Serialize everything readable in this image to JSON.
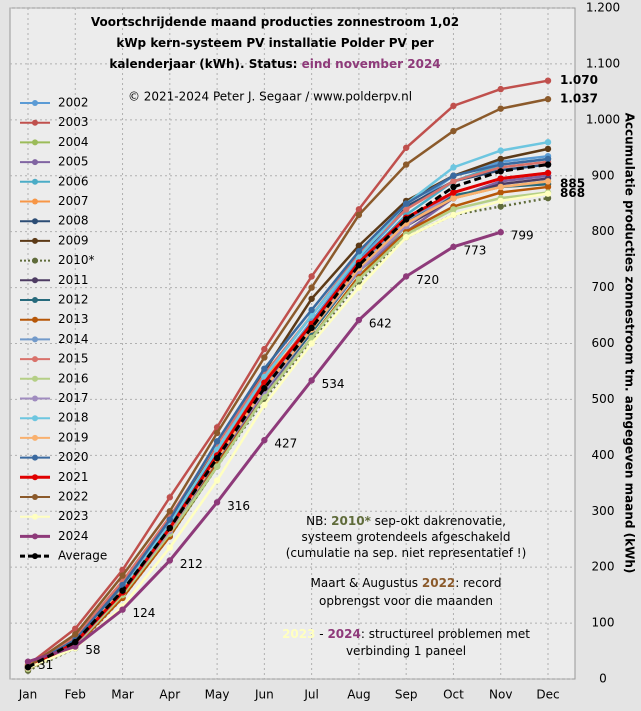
{
  "chart_data": {
    "type": "line",
    "title_lines": [
      "Voortschrijdende maand producties zonnestroom 1,02",
      "kWp kern-systeem PV installatie Polder PV per",
      "kalenderjaar (kWh). Status: "
    ],
    "status": "eind november 2024",
    "status_color": "#8e3a7a",
    "subtitle": "© 2021-2024 Peter J. Segaar / www.polderpv.nl",
    "y_label": "Accumulatie producties zonnestroom tm. aangegeven maand (kWh)",
    "categories": [
      "Jan",
      "Feb",
      "Mar",
      "Apr",
      "May",
      "Jun",
      "Jul",
      "Aug",
      "Sep",
      "Oct",
      "Nov",
      "Dec"
    ],
    "ylim": [
      0,
      1200
    ],
    "yticks": [
      0,
      100,
      200,
      300,
      400,
      500,
      600,
      700,
      800,
      900,
      {
        "value": 1000,
        "label": "1.000"
      },
      {
        "value": 1100,
        "label": "1.100"
      },
      {
        "value": 1200,
        "label": "1.200"
      }
    ],
    "grid": true,
    "series": [
      {
        "name": "2002",
        "color": "#5b9bd5",
        "values": [
          20,
          55,
          150,
          270,
          400,
          530,
          640,
          750,
          840,
          900,
          925,
          935
        ]
      },
      {
        "name": "2003",
        "color": "#c0504d",
        "values": [
          25,
          90,
          195,
          325,
          450,
          590,
          720,
          840,
          950,
          1025,
          1055,
          1070
        ],
        "end_label": "1.070"
      },
      {
        "name": "2004",
        "color": "#9bbb59",
        "values": [
          18,
          60,
          150,
          255,
          380,
          505,
          610,
          720,
          810,
          860,
          880,
          890
        ]
      },
      {
        "name": "2005",
        "color": "#8064a2",
        "values": [
          20,
          62,
          155,
          265,
          390,
          510,
          620,
          730,
          800,
          860,
          890,
          900
        ]
      },
      {
        "name": "2006",
        "color": "#4bacc6",
        "values": [
          22,
          65,
          160,
          275,
          400,
          525,
          630,
          745,
          830,
          890,
          920,
          930
        ]
      },
      {
        "name": "2007",
        "color": "#f79646",
        "values": [
          24,
          70,
          165,
          280,
          410,
          535,
          635,
          740,
          820,
          860,
          880,
          885
        ]
      },
      {
        "name": "2008",
        "color": "#2c4d75",
        "values": [
          20,
          60,
          150,
          270,
          410,
          540,
          650,
          755,
          845,
          890,
          910,
          920
        ]
      },
      {
        "name": "2009",
        "color": "#5c3a17",
        "values": [
          20,
          70,
          170,
          285,
          420,
          550,
          680,
          775,
          855,
          900,
          930,
          948
        ]
      },
      {
        "name": "2010*",
        "color": "#5f6b3a",
        "values": [
          15,
          55,
          145,
          255,
          380,
          500,
          605,
          710,
          790,
          830,
          845,
          860
        ],
        "dotted": true
      },
      {
        "name": "2011",
        "color": "#4d3b62",
        "values": [
          22,
          68,
          160,
          270,
          400,
          520,
          625,
          735,
          810,
          860,
          885,
          895
        ]
      },
      {
        "name": "2012",
        "color": "#276a7c",
        "values": [
          20,
          62,
          150,
          265,
          395,
          515,
          620,
          730,
          815,
          865,
          880,
          885
        ],
        "end_label": "885"
      },
      {
        "name": "2013",
        "color": "#b65708",
        "values": [
          18,
          58,
          145,
          255,
          385,
          505,
          610,
          720,
          800,
          845,
          870,
          880
        ]
      },
      {
        "name": "2014",
        "color": "#729aca",
        "values": [
          20,
          60,
          155,
          265,
          395,
          520,
          630,
          740,
          820,
          870,
          895,
          905
        ]
      },
      {
        "name": "2015",
        "color": "#d9726b",
        "values": [
          22,
          75,
          175,
          290,
          420,
          545,
          650,
          760,
          840,
          890,
          915,
          925
        ]
      },
      {
        "name": "2016",
        "color": "#b5cf86",
        "values": [
          18,
          60,
          150,
          260,
          380,
          505,
          610,
          715,
          795,
          840,
          860,
          870
        ]
      },
      {
        "name": "2017",
        "color": "#a08cbf",
        "values": [
          20,
          62,
          155,
          265,
          395,
          515,
          625,
          730,
          810,
          870,
          895,
          905
        ]
      },
      {
        "name": "2018",
        "color": "#6dc6e0",
        "values": [
          20,
          65,
          160,
          280,
          410,
          540,
          650,
          755,
          850,
          915,
          945,
          960
        ]
      },
      {
        "name": "2019",
        "color": "#f9b06e",
        "values": [
          22,
          66,
          158,
          268,
          395,
          520,
          625,
          735,
          815,
          860,
          880,
          890
        ]
      },
      {
        "name": "2020",
        "color": "#3a6aa0",
        "values": [
          22,
          70,
          168,
          285,
          425,
          555,
          660,
          765,
          850,
          900,
          920,
          930
        ]
      },
      {
        "name": "2021",
        "color": "#e00000",
        "values": [
          20,
          65,
          155,
          270,
          400,
          530,
          635,
          745,
          825,
          870,
          895,
          905
        ],
        "width": 3
      },
      {
        "name": "2022",
        "color": "#8b5a2b",
        "values": [
          22,
          80,
          185,
          300,
          440,
          575,
          700,
          830,
          920,
          980,
          1020,
          1037
        ],
        "end_label": "1.037"
      },
      {
        "name": "2023",
        "color": "#ffffc0",
        "values": [
          20,
          55,
          130,
          235,
          355,
          490,
          600,
          700,
          790,
          830,
          855,
          868
        ],
        "end_label": "868"
      },
      {
        "name": "2024",
        "color": "#8e3a7a",
        "values": [
          31,
          58,
          124,
          212,
          316,
          427,
          534,
          642,
          720,
          773,
          799,
          null
        ],
        "width": 3,
        "show_values": true
      },
      {
        "name": "Average",
        "color": "#000000",
        "values": [
          21,
          66,
          158,
          270,
          395,
          520,
          628,
          740,
          822,
          880,
          908,
          920
        ],
        "dashed": true,
        "width": 3
      }
    ],
    "notes": [
      [
        {
          "text": "NB: "
        },
        {
          "text": "2010*",
          "color": "#5f6b3a"
        },
        {
          "text": " sep-okt dakrenovatie,"
        }
      ],
      [
        {
          "text": "systeem grotendeels afgeschakeld"
        }
      ],
      [
        {
          "text": "(cumulatie na sep. niet representatief !)"
        }
      ],
      [
        {
          "text": "Maart & Augustus "
        },
        {
          "text": "2022",
          "color": "#8b5a2b"
        },
        {
          "text": ": record"
        }
      ],
      [
        {
          "text": "opbrengst voor die maanden"
        }
      ],
      [
        {
          "text": "2023",
          "color": "#ffffc0"
        },
        {
          "text": " - "
        },
        {
          "text": "2024",
          "color": "#8e3a7a"
        },
        {
          "text": ": structureel problemen met"
        }
      ],
      [
        {
          "text": "verbinding 1 paneel"
        }
      ]
    ]
  }
}
